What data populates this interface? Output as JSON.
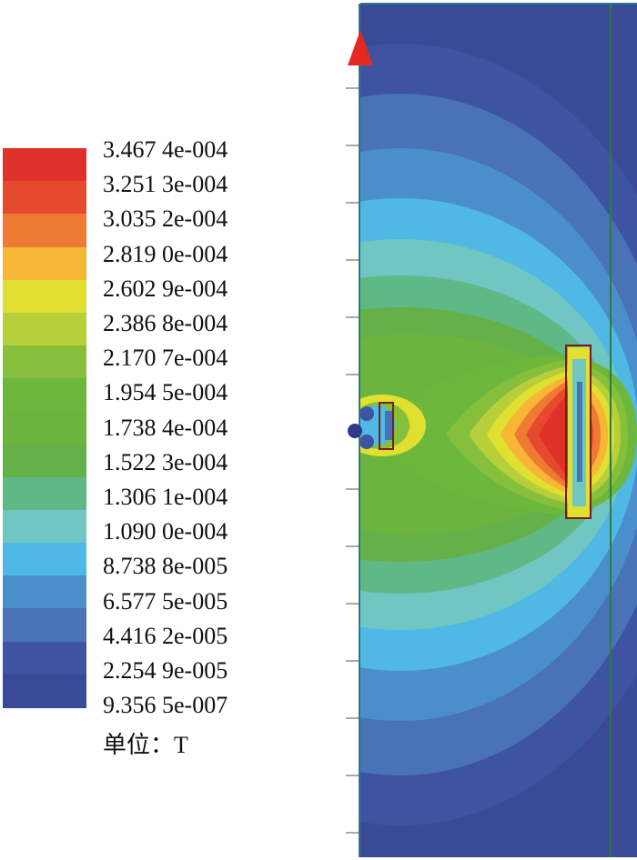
{
  "legend": {
    "labels": [
      "3.467 4e-004",
      "3.251 3e-004",
      "3.035 2e-004",
      "2.819 0e-004",
      "2.602 9e-004",
      "2.386 8e-004",
      "2.170 7e-004",
      "1.954 5e-004",
      "1.738 4e-004",
      "1.522 3e-004",
      "1.306 1e-004",
      "1.090 0e-004",
      "8.738 8e-005",
      "6.577 5e-005",
      "4.416 2e-005",
      "2.254 9e-005",
      "9.356 5e-007"
    ],
    "colors": [
      "#e0302a",
      "#e64a2e",
      "#ee7a34",
      "#f7b635",
      "#dfe030",
      "#b7cf3a",
      "#86bf3c",
      "#6db83c",
      "#6cb43e",
      "#64b14a",
      "#5fb885",
      "#6fc6c3",
      "#4fb8e4",
      "#4a8fcc",
      "#4a72b6",
      "#3e53a1",
      "#3a4a97"
    ],
    "unit": "单位：T"
  }
}
